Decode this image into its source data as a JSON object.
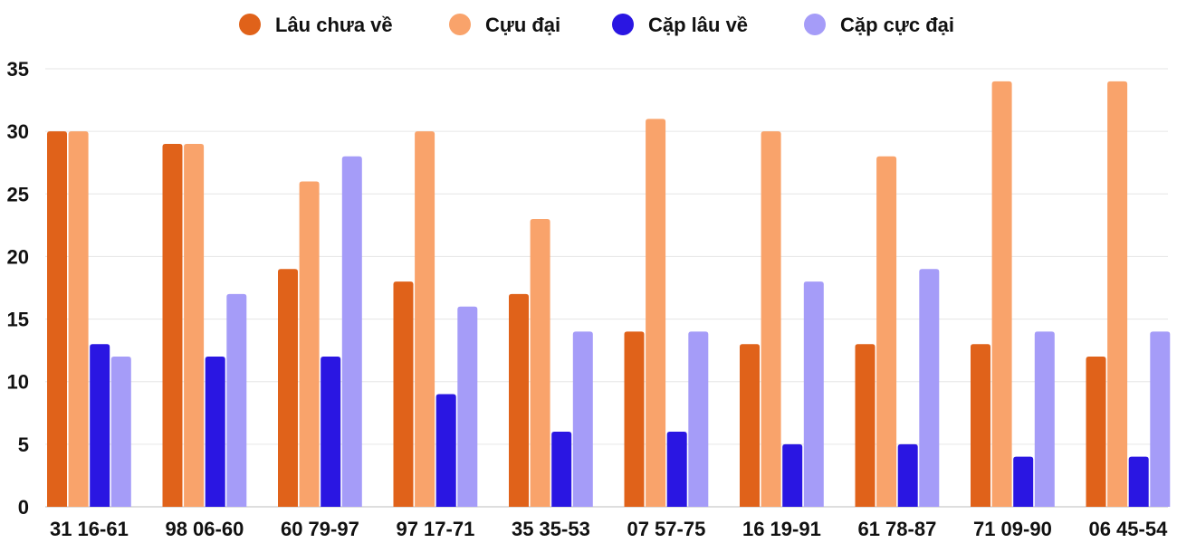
{
  "chart_data": {
    "type": "bar",
    "title": "",
    "xlabel": "",
    "ylabel": "",
    "ylim": [
      0,
      35
    ],
    "yticks": [
      0,
      5,
      10,
      15,
      20,
      25,
      30,
      35
    ],
    "grid": true,
    "legend_position": "top-center",
    "categories": [
      "31 16-61",
      "98 06-60",
      "60 79-97",
      "97 17-71",
      "35 35-53",
      "07 57-75",
      "16 19-91",
      "61 78-87",
      "71 09-90",
      "06 45-54"
    ],
    "series": [
      {
        "name": "Lâu chưa về",
        "color": "#e0621a",
        "values": [
          30,
          29,
          19,
          18,
          17,
          14,
          13,
          13,
          13,
          12
        ]
      },
      {
        "name": "Cựu đại",
        "color": "#f9a36b",
        "values": [
          30,
          29,
          26,
          30,
          23,
          31,
          30,
          28,
          34,
          34
        ]
      },
      {
        "name": "Cặp lâu về",
        "color": "#2a16e2",
        "values": [
          13,
          12,
          12,
          9,
          6,
          6,
          5,
          5,
          4,
          4
        ]
      },
      {
        "name": "Cặp cực đại",
        "color": "#a59cf8",
        "values": [
          12,
          17,
          28,
          16,
          14,
          14,
          18,
          19,
          14,
          14
        ]
      }
    ]
  }
}
